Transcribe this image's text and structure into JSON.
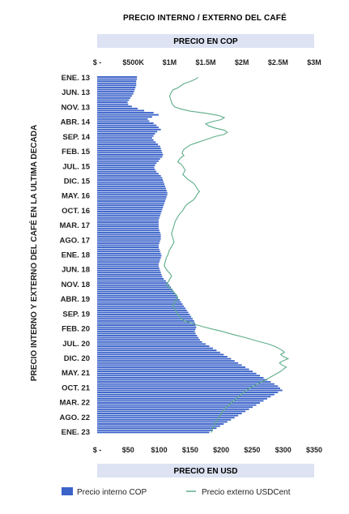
{
  "chart_data": {
    "type": "bar",
    "orientation": "horizontal",
    "title": "PRECIO INTERNO / EXTERNO DEL CAFÉ",
    "ylabel": "PRECIO INTERNO Y EXTERNO DEL CAFÉ EN LA ULTIMA DECADA",
    "top_axis": {
      "label": "PRECIO EN COP",
      "ticks": [
        "$ -",
        "$500K",
        "$1M",
        "$1.5M",
        "$2M",
        "$2.5M",
        "$3M"
      ],
      "range": [
        0,
        3000000
      ]
    },
    "bottom_axis": {
      "label": "PRECIO EN USD",
      "ticks": [
        "$ -",
        "$50",
        "$100",
        "$150",
        "$200",
        "$250",
        "$300",
        "$350"
      ],
      "range": [
        0,
        350
      ]
    },
    "category_labels": [
      "ENE. 13",
      "JUN. 13",
      "NOV. 13",
      "ABR. 14",
      "SEP. 14",
      "FEB. 15",
      "JUL. 15",
      "DIC. 15",
      "MAY. 16",
      "OCT. 16",
      "MAR. 17",
      "AGO. 17",
      "ENE. 18",
      "JUN. 18",
      "NOV. 18",
      "ABR. 19",
      "SEP. 19",
      "FEB. 20",
      "JUL. 20",
      "DIC. 20",
      "MAY. 21",
      "OCT. 21",
      "MAR. 22",
      "AGO. 22",
      "ENE. 23"
    ],
    "series": [
      {
        "name": "Precio interno COP",
        "type": "bar",
        "axis": "top",
        "color": "#3b63c9",
        "values": [
          550000,
          550000,
          540000,
          540000,
          540000,
          530000,
          520000,
          510000,
          500000,
          480000,
          460000,
          440000,
          420000,
          430000,
          480000,
          560000,
          650000,
          780000,
          850000,
          760000,
          700000,
          720000,
          780000,
          820000,
          850000,
          880000,
          830000,
          800000,
          780000,
          760000,
          780000,
          810000,
          840000,
          870000,
          880000,
          890000,
          900000,
          910000,
          900000,
          870000,
          850000,
          820000,
          800000,
          790000,
          800000,
          820000,
          850000,
          880000,
          900000,
          910000,
          920000,
          930000,
          940000,
          950000,
          960000,
          970000,
          970000,
          960000,
          950000,
          940000,
          930000,
          920000,
          910000,
          900000,
          890000,
          880000,
          870000,
          860000,
          850000,
          850000,
          850000,
          850000,
          850000,
          860000,
          870000,
          880000,
          880000,
          880000,
          870000,
          860000,
          850000,
          850000,
          860000,
          870000,
          880000,
          890000,
          880000,
          870000,
          860000,
          850000,
          850000,
          860000,
          870000,
          880000,
          890000,
          900000,
          920000,
          950000,
          980000,
          1000000,
          1020000,
          1040000,
          1060000,
          1080000,
          1100000,
          1120000,
          1140000,
          1160000,
          1180000,
          1200000,
          1220000,
          1240000,
          1260000,
          1280000,
          1300000,
          1320000,
          1340000,
          1350000,
          1360000,
          1370000,
          1360000,
          1350000,
          1360000,
          1380000,
          1400000,
          1420000,
          1450000,
          1500000,
          1550000,
          1600000,
          1650000,
          1700000,
          1750000,
          1800000,
          1850000,
          1900000,
          1950000,
          2000000,
          2050000,
          2100000,
          2150000,
          2200000,
          2250000,
          2300000,
          2350000,
          2400000,
          2450000,
          2500000,
          2530000,
          2560000,
          2500000,
          2450000,
          2400000,
          2350000,
          2300000,
          2250000,
          2200000,
          2150000,
          2100000,
          2050000,
          2000000,
          1950000,
          1900000,
          1850000,
          1800000,
          1750000,
          1700000,
          1650000,
          1600000,
          1550000
        ]
      },
      {
        "name": "Precio externo USDCent",
        "type": "line",
        "axis": "bottom",
        "color": "#5fae8a",
        "values": [
          163,
          158,
          150,
          140,
          135,
          130,
          122,
          120,
          118,
          117,
          118,
          119,
          120,
          122,
          125,
          135,
          150,
          175,
          195,
          205,
          200,
          185,
          175,
          180,
          190,
          205,
          210,
          205,
          190,
          180,
          170,
          160,
          150,
          145,
          140,
          138,
          137,
          140,
          135,
          132,
          130,
          135,
          138,
          140,
          142,
          140,
          138,
          142,
          145,
          150,
          155,
          158,
          160,
          162,
          165,
          162,
          160,
          158,
          155,
          150,
          145,
          142,
          140,
          138,
          135,
          132,
          130,
          128,
          126,
          125,
          124,
          123,
          122,
          121,
          120,
          121,
          122,
          123,
          124,
          122,
          120,
          118,
          116,
          115,
          114,
          112,
          111,
          110,
          109,
          108,
          110,
          112,
          115,
          118,
          120,
          118,
          116,
          114,
          112,
          115,
          118,
          122,
          125,
          128,
          130,
          128,
          126,
          124,
          122,
          124,
          126,
          128,
          130,
          132,
          135,
          140,
          150,
          160,
          172,
          185,
          200,
          212,
          225,
          238,
          250,
          262,
          275,
          285,
          292,
          298,
          302,
          296,
          300,
          308,
          300,
          294,
          298,
          305,
          300,
          296,
          290,
          284,
          278,
          272,
          265,
          258,
          252,
          246,
          240,
          236,
          232,
          228,
          224,
          220,
          216,
          212,
          208,
          205,
          202,
          200,
          198,
          196,
          194,
          192,
          190,
          188,
          186,
          185,
          184
        ]
      }
    ],
    "legend": {
      "position": "bottom"
    }
  }
}
